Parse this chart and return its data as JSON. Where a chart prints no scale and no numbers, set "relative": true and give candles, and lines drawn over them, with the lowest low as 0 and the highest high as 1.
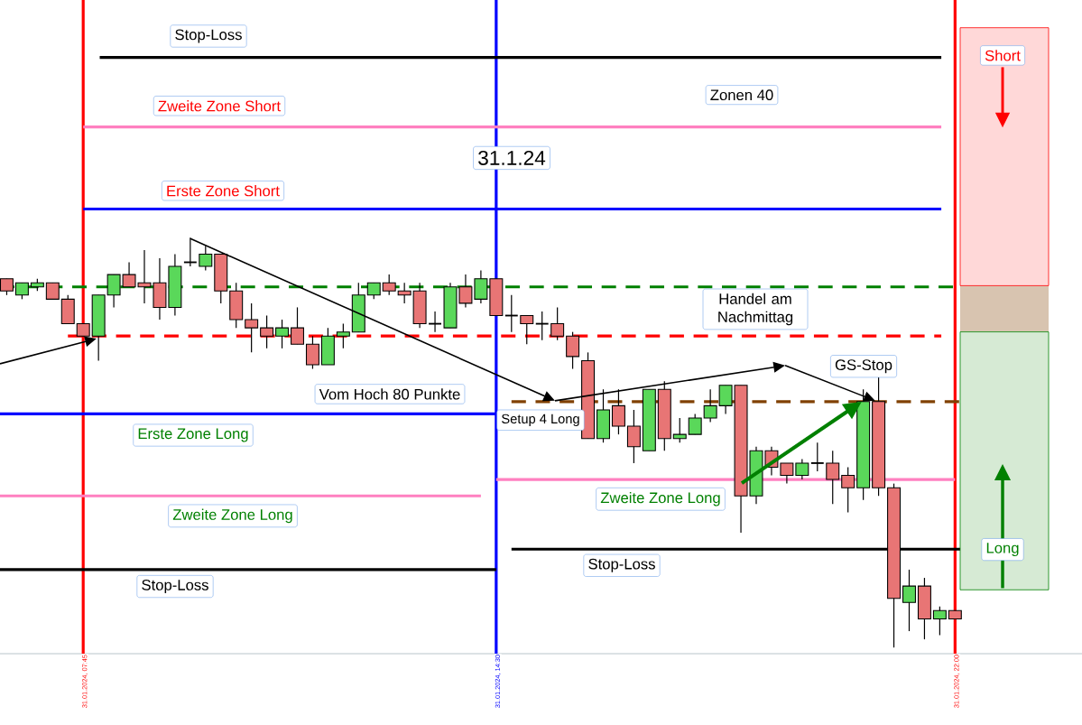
{
  "chart_data": {
    "type": "candlestick",
    "relative": true,
    "tick_labels": "x",
    "categories": [
      null,
      null,
      null,
      null,
      null,
      "31.01.2024, 07:45",
      null,
      null,
      null,
      null,
      null,
      null,
      null,
      null,
      null,
      null,
      null,
      null,
      null,
      null,
      null,
      null,
      null,
      null,
      null,
      null,
      null,
      null,
      null,
      null,
      null,
      null,
      "31.01.2024, 14:30",
      null,
      null,
      null,
      null,
      null,
      null,
      null,
      null,
      null,
      null,
      null,
      null,
      null,
      null,
      null,
      null,
      null,
      null,
      null,
      null,
      null,
      null,
      null,
      null,
      null,
      null,
      null,
      null,
      null,
      "31.01.2024, 22:00"
    ],
    "ohlc": [
      [
        0.9,
        0.9,
        0.86,
        0.87
      ],
      [
        0.86,
        0.89,
        0.85,
        0.89
      ],
      [
        0.88,
        0.9,
        0.87,
        0.89
      ],
      [
        0.89,
        0.89,
        0.85,
        0.85
      ],
      [
        0.85,
        0.86,
        0.79,
        0.79
      ],
      [
        0.79,
        0.79,
        0.76,
        0.76
      ],
      [
        0.76,
        0.86,
        0.7,
        0.86
      ],
      [
        0.86,
        0.91,
        0.83,
        0.91
      ],
      [
        0.91,
        0.94,
        0.88,
        0.88
      ],
      [
        0.89,
        0.97,
        0.84,
        0.88
      ],
      [
        0.89,
        0.95,
        0.8,
        0.83
      ],
      [
        0.83,
        0.96,
        0.81,
        0.93
      ],
      [
        0.94,
        1.0,
        0.93,
        0.94
      ],
      [
        0.93,
        0.98,
        0.92,
        0.96
      ],
      [
        0.96,
        0.96,
        0.84,
        0.87
      ],
      [
        0.87,
        0.89,
        0.78,
        0.8
      ],
      [
        0.8,
        0.84,
        0.72,
        0.78
      ],
      [
        0.78,
        0.81,
        0.73,
        0.76
      ],
      [
        0.76,
        0.8,
        0.73,
        0.78
      ],
      [
        0.78,
        0.83,
        0.74,
        0.74
      ],
      [
        0.74,
        0.76,
        0.68,
        0.69
      ],
      [
        0.69,
        0.78,
        0.69,
        0.76
      ],
      [
        0.76,
        0.79,
        0.73,
        0.77
      ],
      [
        0.77,
        0.89,
        0.77,
        0.86
      ],
      [
        0.86,
        0.89,
        0.85,
        0.89
      ],
      [
        0.89,
        0.91,
        0.86,
        0.87
      ],
      [
        0.87,
        0.89,
        0.84,
        0.86
      ],
      [
        0.87,
        0.89,
        0.78,
        0.79
      ],
      [
        0.79,
        0.82,
        0.77,
        0.79
      ],
      [
        0.78,
        0.89,
        0.78,
        0.88
      ],
      [
        0.88,
        0.91,
        0.83,
        0.84
      ],
      [
        0.85,
        0.92,
        0.84,
        0.9
      ],
      [
        0.9,
        0.9,
        0.81,
        0.81
      ],
      [
        0.81,
        0.86,
        0.77,
        0.81
      ],
      [
        0.81,
        0.81,
        0.74,
        0.79
      ],
      [
        0.79,
        0.82,
        0.75,
        0.79
      ],
      [
        0.79,
        0.83,
        0.75,
        0.76
      ],
      [
        0.76,
        0.77,
        0.68,
        0.71
      ],
      [
        0.7,
        0.72,
        0.51,
        0.51
      ],
      [
        0.51,
        0.63,
        0.5,
        0.58
      ],
      [
        0.59,
        0.63,
        0.52,
        0.54
      ],
      [
        0.54,
        0.58,
        0.45,
        0.49
      ],
      [
        0.48,
        0.63,
        0.48,
        0.63
      ],
      [
        0.63,
        0.65,
        0.48,
        0.51
      ],
      [
        0.51,
        0.56,
        0.5,
        0.52
      ],
      [
        0.52,
        0.57,
        0.52,
        0.56
      ],
      [
        0.56,
        0.63,
        0.55,
        0.59
      ],
      [
        0.59,
        0.64,
        0.57,
        0.64
      ],
      [
        0.64,
        0.64,
        0.28,
        0.37
      ],
      [
        0.37,
        0.49,
        0.35,
        0.48
      ],
      [
        0.48,
        0.49,
        0.42,
        0.44
      ],
      [
        0.45,
        0.45,
        0.4,
        0.42
      ],
      [
        0.42,
        0.46,
        0.41,
        0.45
      ],
      [
        0.45,
        0.5,
        0.43,
        0.45
      ],
      [
        0.45,
        0.48,
        0.35,
        0.41
      ],
      [
        0.42,
        0.44,
        0.33,
        0.39
      ],
      [
        0.39,
        0.63,
        0.36,
        0.6
      ],
      [
        0.6,
        0.66,
        0.37,
        0.39
      ],
      [
        0.39,
        0.4,
        0.0,
        0.12
      ],
      [
        0.11,
        0.19,
        0.04,
        0.15
      ],
      [
        0.15,
        0.17,
        0.02,
        0.07
      ],
      [
        0.07,
        0.1,
        0.03,
        0.09
      ],
      [
        0.09,
        0.09,
        0.07,
        0.07
      ]
    ],
    "ref_lines": [
      {
        "axis": "x",
        "value": "31.01.2024, 07:45",
        "color": "#ff0000"
      },
      {
        "axis": "x",
        "value": "31.01.2024, 14:30",
        "color": "#0000ff"
      },
      {
        "axis": "x",
        "value": "31.01.2024, 22:00",
        "color": "#ff0000"
      },
      {
        "axis": "y",
        "value": 1.44,
        "label": "Stop-Loss",
        "color": "#000000"
      },
      {
        "axis": "y",
        "value": 1.27,
        "label": "Zweite Zone Short",
        "color": "#ff80c0"
      },
      {
        "axis": "y",
        "value": 1.07,
        "label": "Erste Zone Short",
        "color": "#0000ff"
      },
      {
        "axis": "y",
        "value": 0.88,
        "color": "#008000",
        "line_style": "dashed"
      },
      {
        "axis": "y",
        "value": 0.76,
        "color": "#ff0000",
        "line_style": "dashed"
      },
      {
        "axis": "y",
        "value": 0.6,
        "color": "#804000",
        "line_style": "dashed"
      },
      {
        "axis": "y",
        "value": 0.57,
        "label": "Erste Zone Long",
        "color": "#0000ff"
      },
      {
        "axis": "y",
        "value": 0.37,
        "label": "Zweite Zone Long",
        "color": "#ff80c0"
      },
      {
        "axis": "y",
        "value": 0.19,
        "label": "Stop-Loss",
        "color": "#000000"
      },
      {
        "axis": "y",
        "value": 0.41,
        "label": "Zweite Zone Long",
        "color": "#ff80c0"
      },
      {
        "axis": "y",
        "value": 0.24,
        "label": "Stop-Loss",
        "color": "#000000"
      }
    ],
    "annotations": [
      "31.1.24",
      "Zonen 40",
      "Handel am Nachmittag",
      "Setup 4 Long",
      "GS-Stop",
      "Vom Hoch 80 Punkte",
      "Short",
      "Long"
    ]
  }
}
